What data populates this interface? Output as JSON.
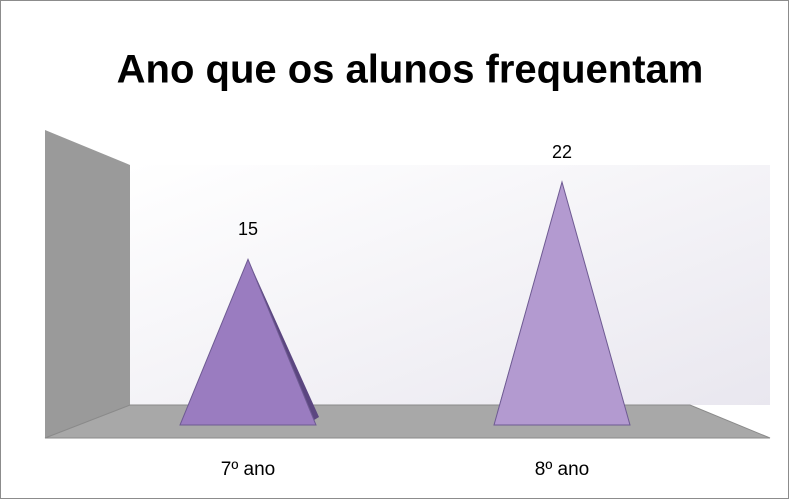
{
  "chart_data": {
    "type": "pyramid",
    "title": "Ano que os alunos frequentam",
    "categories": [
      "7º ano",
      "8º ano"
    ],
    "values": [
      15,
      22
    ],
    "colors": [
      "#9a7cc0",
      "#b39ad0"
    ]
  }
}
